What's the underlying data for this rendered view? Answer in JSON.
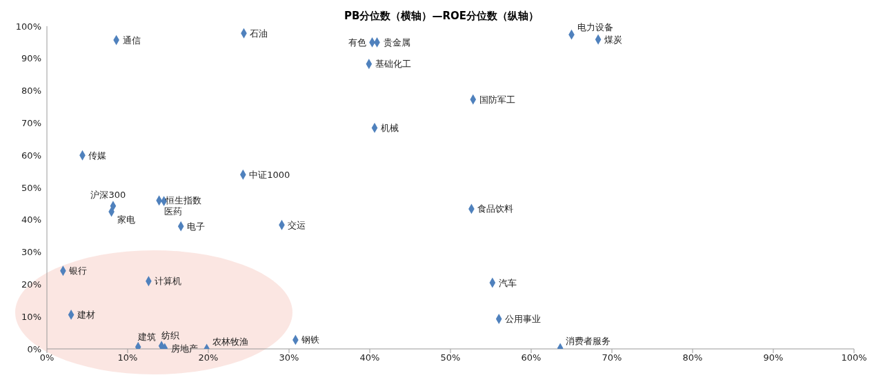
{
  "chart_data": {
    "type": "scatter",
    "title": "PB分位数（横轴）—ROE分位数（纵轴）",
    "series": [
      {
        "name": "通信",
        "color": "#4f81bd",
        "x": [
          8.6
        ],
        "values": [
          95.7
        ]
      },
      {
        "name": "石油",
        "color": "#4f81bd",
        "x": [
          24.4
        ],
        "values": [
          97.8
        ]
      },
      {
        "name": "有色",
        "color": "#4f81bd",
        "x": [
          40.3
        ],
        "values": [
          95
        ]
      },
      {
        "name": "贵金属",
        "color": "#4f81bd",
        "x": [
          40.9
        ],
        "values": [
          95
        ]
      },
      {
        "name": "基础化工",
        "color": "#4f81bd",
        "x": [
          39.9
        ],
        "values": [
          88.3
        ]
      },
      {
        "name": "电力设备",
        "color": "#4f81bd",
        "x": [
          65
        ],
        "values": [
          97.4
        ]
      },
      {
        "name": "煤炭",
        "color": "#4f81bd",
        "x": [
          68.3
        ],
        "values": [
          95.9
        ]
      },
      {
        "name": "国防军工",
        "color": "#4f81bd",
        "x": [
          52.8
        ],
        "values": [
          77.3
        ]
      },
      {
        "name": "机械",
        "color": "#4f81bd",
        "x": [
          40.6
        ],
        "values": [
          68.5
        ]
      },
      {
        "name": "传媒",
        "color": "#4f81bd",
        "x": [
          4.4
        ],
        "values": [
          60
        ]
      },
      {
        "name": "中证1000",
        "color": "#4f81bd",
        "x": [
          24.3
        ],
        "values": [
          54
        ]
      },
      {
        "name": "恒生指数",
        "color": "#4f81bd",
        "x": [
          13.9
        ],
        "values": [
          46
        ]
      },
      {
        "name": "医药",
        "color": "#4f81bd",
        "x": [
          14.5
        ],
        "values": [
          45.8
        ]
      },
      {
        "name": "沪深300",
        "color": "#4f81bd",
        "x": [
          8.2
        ],
        "values": [
          44.3
        ]
      },
      {
        "name": "家电",
        "color": "#4f81bd",
        "x": [
          8
        ],
        "values": [
          42.5
        ]
      },
      {
        "name": "电子",
        "color": "#4f81bd",
        "x": [
          16.6
        ],
        "values": [
          38
        ]
      },
      {
        "name": "交运",
        "color": "#4f81bd",
        "x": [
          29.1
        ],
        "values": [
          38.4
        ]
      },
      {
        "name": "食品饮料",
        "color": "#4f81bd",
        "x": [
          52.6
        ],
        "values": [
          43.4
        ]
      },
      {
        "name": "银行",
        "color": "#4f81bd",
        "x": [
          2
        ],
        "values": [
          24.2
        ]
      },
      {
        "name": "计算机",
        "color": "#4f81bd",
        "x": [
          12.6
        ],
        "values": [
          21
        ]
      },
      {
        "name": "汽车",
        "color": "#4f81bd",
        "x": [
          55.2
        ],
        "values": [
          20.5
        ]
      },
      {
        "name": "建材",
        "color": "#4f81bd",
        "x": [
          3
        ],
        "values": [
          10.6
        ]
      },
      {
        "name": "公用事业",
        "color": "#4f81bd",
        "x": [
          56
        ],
        "values": [
          9.3
        ]
      },
      {
        "name": "钢铁",
        "color": "#4f81bd",
        "x": [
          30.8
        ],
        "values": [
          2.8
        ]
      },
      {
        "name": "建筑",
        "color": "#4f81bd",
        "x": [
          11.3
        ],
        "values": [
          0.6
        ]
      },
      {
        "name": "纺织",
        "color": "#4f81bd",
        "x": [
          14.2
        ],
        "values": [
          0.9
        ]
      },
      {
        "name": "房地产",
        "color": "#4f81bd",
        "x": [
          14.6
        ],
        "values": [
          0.2
        ]
      },
      {
        "name": "农林牧渔",
        "color": "#4f81bd",
        "x": [
          19.8
        ],
        "values": [
          0
        ]
      },
      {
        "name": "消费者服务",
        "color": "#4f81bd",
        "x": [
          63.6
        ],
        "values": [
          0.2
        ]
      }
    ],
    "marker": "diamond",
    "grid": false,
    "legend": false,
    "xlim": [
      0,
      100
    ],
    "ylim": [
      0,
      100
    ],
    "xticks": [
      {
        "value": 0,
        "label": "0%"
      },
      {
        "value": 10,
        "label": "10%"
      },
      {
        "value": 20,
        "label": "20%"
      },
      {
        "value": 30,
        "label": "30%"
      },
      {
        "value": 40,
        "label": "40%"
      },
      {
        "value": 50,
        "label": "50%"
      },
      {
        "value": 60,
        "label": "60%"
      },
      {
        "value": 70,
        "label": "70%"
      },
      {
        "value": 80,
        "label": "80%"
      },
      {
        "value": 90,
        "label": "90%"
      },
      {
        "value": 100,
        "label": "100%"
      }
    ],
    "yticks": [
      {
        "value": 0,
        "label": "0%"
      },
      {
        "value": 10,
        "label": "10%"
      },
      {
        "value": 20,
        "label": "20%"
      },
      {
        "value": 30,
        "label": "30%"
      },
      {
        "value": 40,
        "label": "40%"
      },
      {
        "value": 50,
        "label": "50%"
      },
      {
        "value": 60,
        "label": "60%"
      },
      {
        "value": 70,
        "label": "70%"
      },
      {
        "value": 80,
        "label": "80%"
      },
      {
        "value": 90,
        "label": "90%"
      },
      {
        "value": 100,
        "label": "100%"
      }
    ]
  }
}
